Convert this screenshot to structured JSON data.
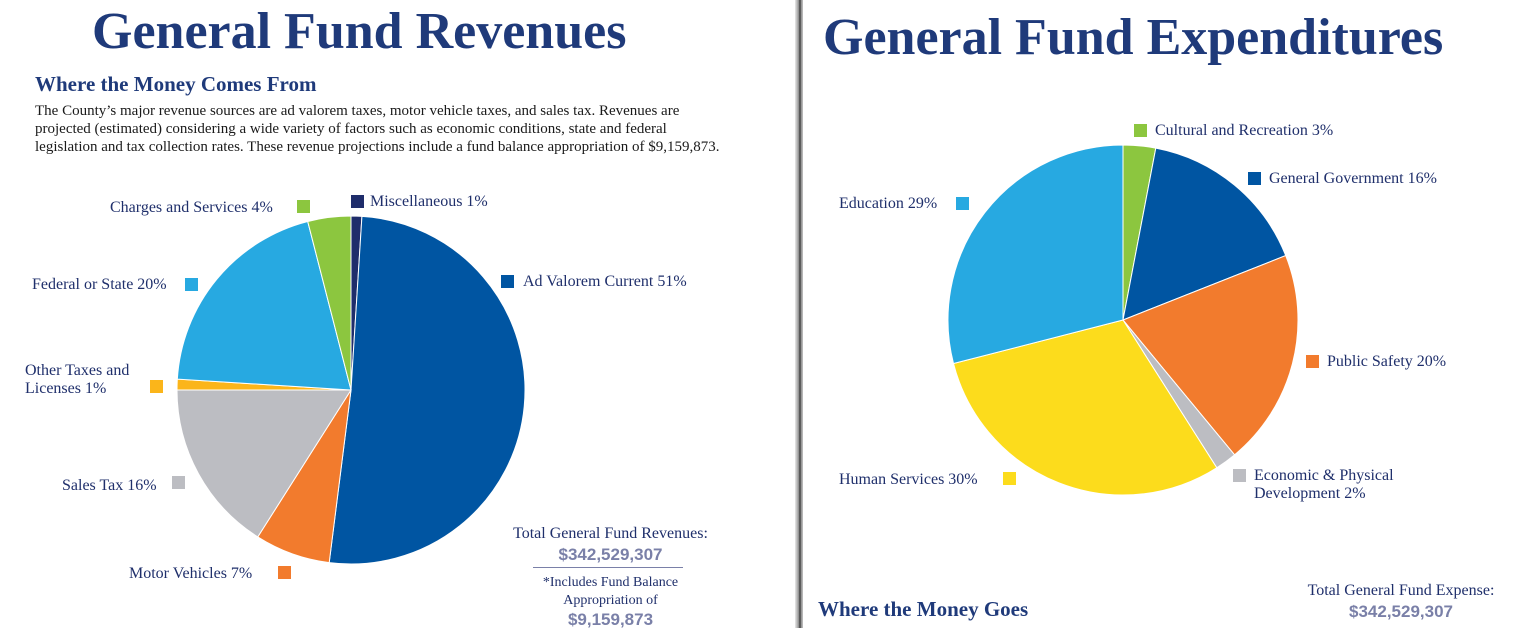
{
  "left": {
    "title": "General Fund Revenues",
    "subtitle": "Where the Money Comes From",
    "intro": "The County’s major revenue sources are ad valorem taxes, motor vehicle taxes, and sales tax. Revenues are projected (estimated) considering a wide variety of factors such as economic conditions, state and federal legislation and tax collection rates. These revenue projections include a fund balance appropriation of $9,159,873.",
    "total_label": "Total General Fund Revenues:",
    "total_value": "$342,529,307",
    "note_line1": "*Includes Fund Balance",
    "note_line2": "Appropriation of",
    "note_value": "$9,159,873"
  },
  "right": {
    "title": "General Fund Expenditures",
    "subtitle": "Where the Money Goes",
    "total_label": "Total General Fund Expense:",
    "total_value": "$342,529,307"
  },
  "chart_data": [
    {
      "type": "pie",
      "title": "General Fund Revenues",
      "categories": [
        "Miscellaneous 1%",
        "Ad Valorem Current 51%",
        "Motor Vehicles 7%",
        "Sales Tax 16%",
        "Other Taxes and Licenses 1%",
        "Federal or State 20%",
        "Charges and Services 4%"
      ],
      "values": [
        1,
        51,
        7,
        16,
        1,
        20,
        4
      ],
      "colors": [
        "#1f2d6b",
        "#0055a2",
        "#f27b2d",
        "#bcbdc2",
        "#fbb51a",
        "#27a9e1",
        "#8cc63f"
      ]
    },
    {
      "type": "pie",
      "title": "General Fund Expenditures",
      "categories": [
        "Cultural and Recreation 3%",
        "General Government 16%",
        "Public Safety 20%",
        "Economic & Physical Development 2%",
        "Human Services 30%",
        "Education 29%"
      ],
      "values": [
        3,
        16,
        20,
        2,
        30,
        29
      ],
      "colors": [
        "#8cc63f",
        "#0055a2",
        "#f27b2d",
        "#bcbdc2",
        "#fcdc1c",
        "#27a9e1"
      ]
    }
  ]
}
